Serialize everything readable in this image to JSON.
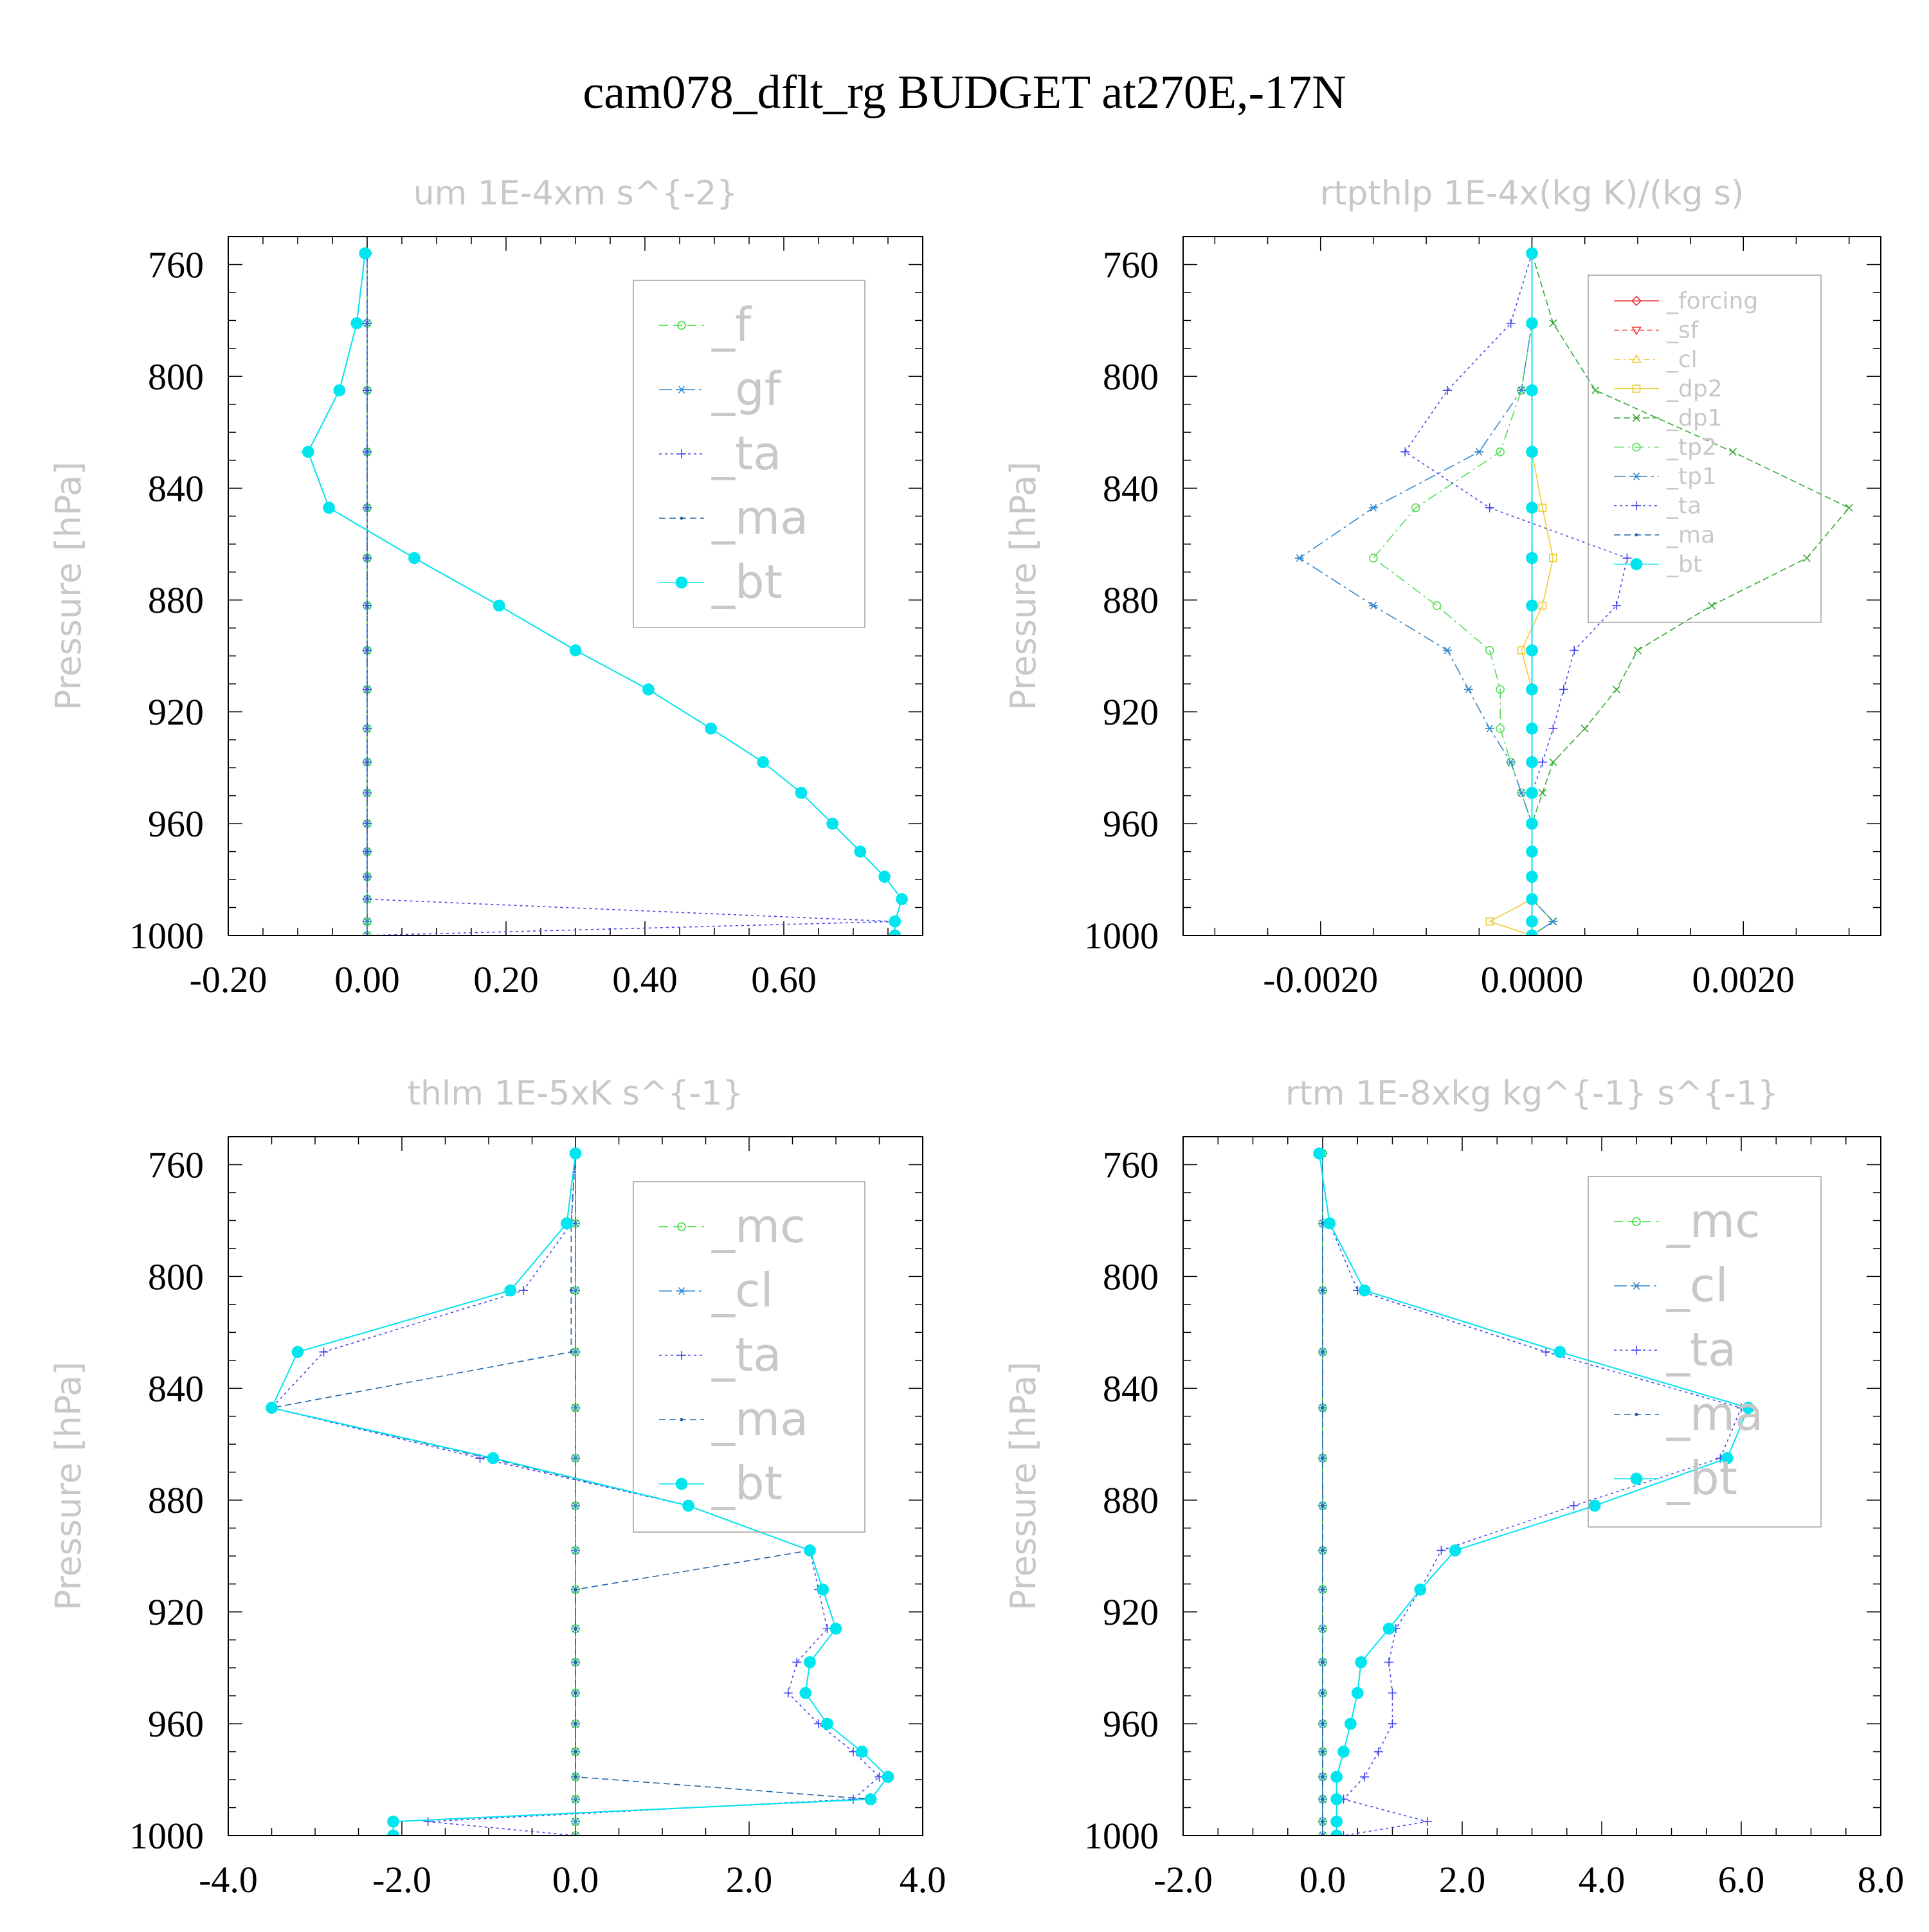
{
  "page_title": "cam078_dflt_rg  BUDGET at270E,-17N",
  "colors": {
    "frame": "#000000",
    "panel_title": "#c8c8c8",
    "ylabel": "#c8c8c8",
    "legend_text": "#c8c8c8",
    "legend_box": "#a0a0a0",
    "tick_label": "#000000"
  },
  "chart_data": [
    {
      "type": "line",
      "title": "um  1E-4xm s^{-2}",
      "ylabel": "Pressure [hPa]",
      "xlim": [
        -0.2,
        0.8
      ],
      "ylim": [
        1000,
        750
      ],
      "xticks": [
        -0.2,
        0.0,
        0.2,
        0.4,
        0.6
      ],
      "xtick_labels": [
        "-0.20",
        "0.00",
        "0.20",
        "0.40",
        "0.60"
      ],
      "yticks": [
        760,
        800,
        840,
        880,
        920,
        960,
        1000
      ],
      "ytick_labels": [
        "760",
        "800",
        "840",
        "880",
        "920",
        "960",
        "1000"
      ],
      "y": [
        756,
        781,
        805,
        827,
        847,
        865,
        882,
        898,
        912,
        926,
        938,
        949,
        960,
        970,
        979,
        987,
        995,
        1000
      ],
      "series": [
        {
          "name": "_f",
          "color": "#33dd33",
          "marker": "circle-open",
          "dash": "14,8",
          "values": [
            0,
            0,
            0,
            0,
            0,
            0,
            0,
            0,
            0,
            0,
            0,
            0,
            0,
            0,
            0,
            0,
            0,
            0
          ]
        },
        {
          "name": "_gf",
          "color": "#3388cc",
          "marker": "asterisk",
          "dash": "20,6,4,6",
          "values": [
            0,
            0,
            0,
            0,
            0,
            0,
            0,
            0,
            0,
            0,
            0,
            0,
            0,
            0,
            0,
            0,
            0,
            0
          ]
        },
        {
          "name": "_ta",
          "color": "#4444ee",
          "marker": "plus",
          "dash": "4,5",
          "values": [
            0,
            0,
            0,
            0,
            0,
            0,
            0,
            0,
            0,
            0,
            0,
            0,
            0,
            0,
            0,
            0,
            0.76,
            0
          ]
        },
        {
          "name": "_ma",
          "color": "#2266aa",
          "marker": "dot",
          "dash": "10,6",
          "values": [
            -0.003,
            -0.015,
            -0.04,
            -0.085,
            -0.055,
            0.068,
            0.19,
            0.3,
            0.405,
            0.495,
            0.57,
            0.625,
            0.67,
            0.71,
            0.745,
            0.77,
            0.76,
            0.76
          ]
        },
        {
          "name": "_bt",
          "color": "#00e5ee",
          "marker": "filled-circle",
          "dash": "",
          "values": [
            -0.003,
            -0.015,
            -0.04,
            -0.085,
            -0.055,
            0.068,
            0.19,
            0.3,
            0.405,
            0.495,
            0.57,
            0.625,
            0.67,
            0.71,
            0.745,
            0.77,
            0.76,
            0.76
          ]
        }
      ]
    },
    {
      "type": "line",
      "title": "rtpthlp  1E-4x(kg K)/(kg s)",
      "ylabel": "Pressure [hPa]",
      "xlim": [
        -0.0033,
        0.0033
      ],
      "ylim": [
        1000,
        750
      ],
      "xticks": [
        -0.002,
        0.0,
        0.002
      ],
      "xtick_labels": [
        "-0.0020",
        "0.0000",
        "0.0020"
      ],
      "yticks": [
        760,
        800,
        840,
        880,
        920,
        960,
        1000
      ],
      "ytick_labels": [
        "760",
        "800",
        "840",
        "880",
        "920",
        "960",
        "1000"
      ],
      "y": [
        756,
        781,
        805,
        827,
        847,
        865,
        882,
        898,
        912,
        926,
        938,
        949,
        960,
        970,
        979,
        987,
        995,
        1000
      ],
      "series": [
        {
          "name": "_forcing",
          "color": "#ee3333",
          "marker": "diamond",
          "dash": "",
          "values": [
            0,
            0,
            0,
            0,
            0,
            0,
            0,
            0,
            0,
            0,
            0,
            0,
            0,
            0,
            0,
            0,
            0,
            0
          ]
        },
        {
          "name": "_sf",
          "color": "#ee3333",
          "marker": "triangle-down",
          "dash": "8,5",
          "values": [
            0,
            0,
            0,
            0,
            0,
            0,
            0,
            0,
            0,
            0,
            0,
            0,
            0,
            0,
            0,
            0,
            0,
            0
          ]
        },
        {
          "name": "_cl",
          "color": "#eecc33",
          "marker": "triangle-up",
          "dash": "10,5,3,5",
          "values": [
            0,
            0,
            0,
            0,
            0,
            0,
            0,
            0,
            0,
            0,
            0,
            0,
            0,
            0,
            0,
            0,
            0,
            0
          ]
        },
        {
          "name": "_dp2",
          "color": "#eecc33",
          "marker": "square",
          "dash": "",
          "values": [
            0,
            0,
            0,
            0,
            0.0001,
            0.0002,
            0.0001,
            -0.0001,
            0,
            0,
            0,
            0,
            0,
            0,
            0,
            0,
            -0.0004,
            0
          ]
        },
        {
          "name": "_dp1",
          "color": "#33aa33",
          "marker": "cross",
          "dash": "10,5",
          "values": [
            0,
            0.0002,
            0.0006,
            0.0019,
            0.003,
            0.0026,
            0.0017,
            0.001,
            0.0008,
            0.0005,
            0.0002,
            0.0001,
            0,
            0,
            0,
            0,
            0.0002,
            0
          ]
        },
        {
          "name": "_tp2",
          "color": "#55dd55",
          "marker": "circle-open",
          "dash": "16,6,3,6",
          "values": [
            0,
            0,
            -0.0001,
            -0.0003,
            -0.0011,
            -0.0015,
            -0.0009,
            -0.0004,
            -0.0003,
            -0.0003,
            -0.0002,
            -0.0001,
            0,
            0,
            0,
            0,
            0,
            0
          ]
        },
        {
          "name": "_tp1",
          "color": "#3388cc",
          "marker": "asterisk",
          "dash": "18,6,4,6",
          "values": [
            0,
            0,
            -0.0001,
            -0.0005,
            -0.0015,
            -0.0022,
            -0.0015,
            -0.0008,
            -0.0006,
            -0.0004,
            -0.0002,
            -0.0001,
            0,
            0,
            0,
            0,
            0.0002,
            0
          ]
        },
        {
          "name": "_ta",
          "color": "#4444ee",
          "marker": "plus",
          "dash": "4,5",
          "values": [
            0,
            -0.0002,
            -0.0008,
            -0.0012,
            -0.0004,
            0.0009,
            0.0008,
            0.0004,
            0.0003,
            0.0002,
            0.0001,
            0,
            0,
            0,
            0,
            0,
            0,
            0
          ]
        },
        {
          "name": "_ma",
          "color": "#2266aa",
          "marker": "dot",
          "dash": "10,6",
          "values": [
            0,
            0,
            0,
            0,
            0,
            0,
            0,
            0,
            0,
            0,
            0,
            0,
            0,
            0,
            0,
            0,
            0,
            0
          ]
        },
        {
          "name": "_bt",
          "color": "#00e5ee",
          "marker": "filled-circle",
          "dash": "",
          "values": [
            0,
            0,
            0,
            0,
            0,
            0,
            0,
            0,
            0,
            0,
            0,
            0,
            0,
            0,
            0,
            0,
            0,
            0
          ]
        }
      ]
    },
    {
      "type": "line",
      "title": "thlm  1E-5xK s^{-1}",
      "ylabel": "Pressure [hPa]",
      "xlim": [
        -4.0,
        4.0
      ],
      "ylim": [
        1000,
        750
      ],
      "xticks": [
        -4.0,
        -2.0,
        0.0,
        2.0,
        4.0
      ],
      "xtick_labels": [
        "-4.0",
        "-2.0",
        "0.0",
        "2.0",
        "4.0"
      ],
      "yticks": [
        760,
        800,
        840,
        880,
        920,
        960,
        1000
      ],
      "ytick_labels": [
        "760",
        "800",
        "840",
        "880",
        "920",
        "960",
        "1000"
      ],
      "y": [
        756,
        781,
        805,
        827,
        847,
        865,
        882,
        898,
        912,
        926,
        938,
        949,
        960,
        970,
        979,
        987,
        995,
        1000
      ],
      "series": [
        {
          "name": "_mc",
          "color": "#33dd33",
          "marker": "circle-open",
          "dash": "14,8",
          "values": [
            0,
            0,
            0,
            0,
            0,
            0,
            0,
            0,
            0,
            0,
            0,
            0,
            0,
            0,
            0,
            0,
            0,
            0
          ]
        },
        {
          "name": "_cl",
          "color": "#3388cc",
          "marker": "asterisk",
          "dash": "20,6,4,6",
          "values": [
            0,
            0,
            0,
            0,
            0,
            0,
            0,
            0,
            0,
            0,
            0,
            0,
            0,
            0,
            0,
            0,
            0,
            0
          ]
        },
        {
          "name": "_ta",
          "color": "#4444ee",
          "marker": "plus",
          "dash": "4,5",
          "values": [
            0,
            -0.05,
            -0.6,
            -2.9,
            -3.5,
            -1.1,
            1.3,
            2.7,
            2.8,
            2.9,
            2.55,
            2.45,
            2.8,
            3.2,
            3.5,
            3.2,
            -1.7,
            0
          ]
        },
        {
          "name": "_ma",
          "color": "#2266aa",
          "marker": "dot",
          "dash": "10,6",
          "values": [
            0,
            -0.05,
            -0.05,
            -0.05,
            -3.5,
            -1.0,
            1.3,
            2.7,
            0,
            0,
            0,
            0,
            0,
            0,
            0,
            3.4,
            -2.1,
            -2.1
          ]
        },
        {
          "name": "_bt",
          "color": "#00e5ee",
          "marker": "filled-circle",
          "dash": "",
          "values": [
            0,
            -0.1,
            -0.75,
            -3.2,
            -3.5,
            -0.95,
            1.3,
            2.7,
            2.85,
            3.0,
            2.7,
            2.65,
            2.9,
            3.3,
            3.6,
            3.4,
            -2.1,
            -2.1
          ]
        }
      ]
    },
    {
      "type": "line",
      "title": "rtm  1E-8xkg kg^{-1} s^{-1}",
      "ylabel": "Pressure [hPa]",
      "xlim": [
        -2.0,
        8.0
      ],
      "ylim": [
        1000,
        750
      ],
      "xticks": [
        -2.0,
        0.0,
        2.0,
        4.0,
        6.0,
        8.0
      ],
      "xtick_labels": [
        "-2.0",
        "0.0",
        "2.0",
        "4.0",
        "6.0",
        "8.0"
      ],
      "yticks": [
        760,
        800,
        840,
        880,
        920,
        960,
        1000
      ],
      "ytick_labels": [
        "760",
        "800",
        "840",
        "880",
        "920",
        "960",
        "1000"
      ],
      "y": [
        756,
        781,
        805,
        827,
        847,
        865,
        882,
        898,
        912,
        926,
        938,
        949,
        960,
        970,
        979,
        987,
        995,
        1000
      ],
      "series": [
        {
          "name": "_mc",
          "color": "#33dd33",
          "marker": "circle-open",
          "dash": "14,8",
          "values": [
            0,
            0,
            0,
            0,
            0,
            0,
            0,
            0,
            0,
            0,
            0,
            0,
            0,
            0,
            0,
            0,
            0,
            0
          ]
        },
        {
          "name": "_cl",
          "color": "#3388cc",
          "marker": "asterisk",
          "dash": "20,6,4,6",
          "values": [
            0,
            0,
            0,
            0,
            0,
            0,
            0,
            0,
            0,
            0,
            0,
            0,
            0,
            0,
            0,
            0,
            0,
            0
          ]
        },
        {
          "name": "_ta",
          "color": "#4444ee",
          "marker": "plus",
          "dash": "4,5",
          "values": [
            -0.05,
            0.1,
            0.5,
            3.2,
            6.0,
            5.7,
            3.6,
            1.7,
            1.4,
            1.05,
            0.95,
            1.0,
            1.0,
            0.8,
            0.6,
            0.3,
            1.5,
            0.3
          ]
        },
        {
          "name": "_ma",
          "color": "#2266aa",
          "marker": "dot",
          "dash": "10,6",
          "values": [
            0,
            0,
            0,
            0,
            0,
            0,
            0,
            0,
            0,
            0,
            0,
            0,
            0,
            0,
            0,
            0,
            0,
            0
          ]
        },
        {
          "name": "_bt",
          "color": "#00e5ee",
          "marker": "filled-circle",
          "dash": "",
          "values": [
            -0.05,
            0.1,
            0.6,
            3.4,
            6.1,
            5.8,
            3.9,
            1.9,
            1.4,
            0.95,
            0.55,
            0.5,
            0.4,
            0.3,
            0.2,
            0.2,
            0.2,
            0.2
          ]
        }
      ]
    }
  ]
}
